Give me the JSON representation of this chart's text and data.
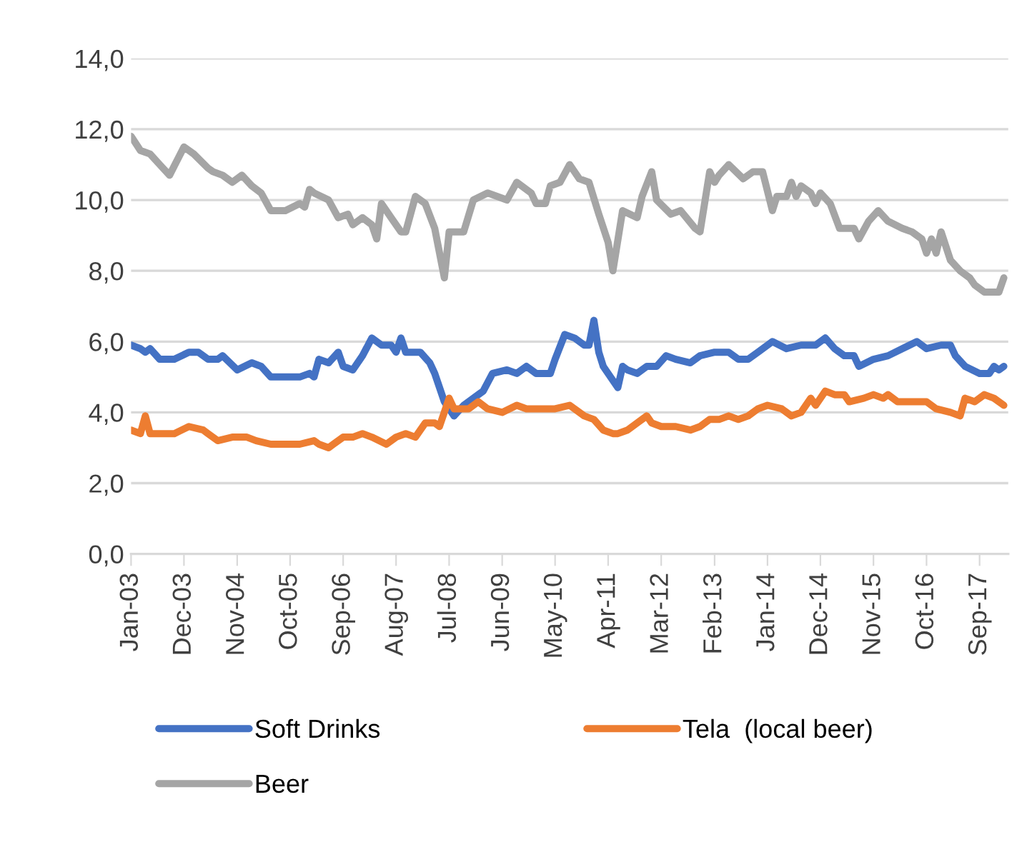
{
  "chart_data": {
    "type": "line",
    "legend": "bottom",
    "grid": "y",
    "marker": "none",
    "line_style": "solid",
    "ylim": [
      0,
      14
    ],
    "yticks": [
      {
        "value": 0,
        "label": "0,0"
      },
      {
        "value": 2,
        "label": "2,0"
      },
      {
        "value": 4,
        "label": "4,0"
      },
      {
        "value": 6,
        "label": "6,0"
      },
      {
        "value": 8,
        "label": "8,0"
      },
      {
        "value": 10,
        "label": "10,0"
      },
      {
        "value": 12,
        "label": "12,0"
      },
      {
        "value": 14,
        "label": "14,0"
      }
    ],
    "xlim": [
      "2003-01",
      "2018-03"
    ],
    "xticks": [
      {
        "value": "2003-01",
        "label": "Jan-03"
      },
      {
        "value": "2003-12",
        "label": "Dec-03"
      },
      {
        "value": "2004-11",
        "label": "Nov-04"
      },
      {
        "value": "2005-10",
        "label": "Oct-05"
      },
      {
        "value": "2006-09",
        "label": "Sep-06"
      },
      {
        "value": "2007-08",
        "label": "Aug-07"
      },
      {
        "value": "2008-07",
        "label": "Jul-08"
      },
      {
        "value": "2009-06",
        "label": "Jun-09"
      },
      {
        "value": "2010-05",
        "label": "May-10"
      },
      {
        "value": "2011-04",
        "label": "Apr-11"
      },
      {
        "value": "2012-03",
        "label": "Mar-12"
      },
      {
        "value": "2013-02",
        "label": "Feb-13"
      },
      {
        "value": "2014-01",
        "label": "Jan-14"
      },
      {
        "value": "2014-12",
        "label": "Dec-14"
      },
      {
        "value": "2015-11",
        "label": "Nov-15"
      },
      {
        "value": "2016-10",
        "label": "Oct-16"
      },
      {
        "value": "2017-09",
        "label": "Sep-17"
      }
    ],
    "series": [
      {
        "name": "Soft Drinks",
        "color": "#4472c4",
        "x": [
          "2003-01",
          "2003-03",
          "2003-04",
          "2003-05",
          "2003-07",
          "2003-08",
          "2003-10",
          "2004-01",
          "2004-03",
          "2004-05",
          "2004-07",
          "2004-08",
          "2004-11",
          "2005-02",
          "2005-04",
          "2005-06",
          "2005-09",
          "2005-12",
          "2006-02",
          "2006-03",
          "2006-04",
          "2006-06",
          "2006-08",
          "2006-09",
          "2006-11",
          "2007-01",
          "2007-03",
          "2007-05",
          "2007-07",
          "2007-08",
          "2007-09",
          "2007-10",
          "2008-01",
          "2008-03",
          "2008-04",
          "2008-06",
          "2008-08",
          "2008-10",
          "2009-01",
          "2009-02",
          "2009-04",
          "2009-07",
          "2009-09",
          "2009-11",
          "2010-01",
          "2010-04",
          "2010-05",
          "2010-07",
          "2010-09",
          "2010-11",
          "2010-12",
          "2011-01",
          "2011-02",
          "2011-03",
          "2011-06",
          "2011-07",
          "2011-08",
          "2011-10",
          "2011-12",
          "2012-02",
          "2012-04",
          "2012-06",
          "2012-09",
          "2012-11",
          "2013-02",
          "2013-05",
          "2013-07",
          "2013-09",
          "2013-11",
          "2014-02",
          "2014-05",
          "2014-08",
          "2014-11",
          "2015-01",
          "2015-03",
          "2015-05",
          "2015-07",
          "2015-08",
          "2015-11",
          "2016-02",
          "2016-05",
          "2016-08",
          "2016-10",
          "2017-01",
          "2017-03",
          "2017-04",
          "2017-06",
          "2017-09",
          "2017-11",
          "2017-12",
          "2018-01",
          "2018-02"
        ],
        "values": [
          5.9,
          5.8,
          5.7,
          5.8,
          5.5,
          5.5,
          5.5,
          5.7,
          5.7,
          5.5,
          5.5,
          5.6,
          5.2,
          5.4,
          5.3,
          5.0,
          5.0,
          5.0,
          5.1,
          5.0,
          5.5,
          5.4,
          5.7,
          5.3,
          5.2,
          5.6,
          6.1,
          5.9,
          5.9,
          5.7,
          6.1,
          5.7,
          5.7,
          5.4,
          5.1,
          4.3,
          3.9,
          4.2,
          4.5,
          4.6,
          5.1,
          5.2,
          5.1,
          5.3,
          5.1,
          5.1,
          5.5,
          6.2,
          6.1,
          5.9,
          5.9,
          6.6,
          5.7,
          5.3,
          4.7,
          5.3,
          5.2,
          5.1,
          5.3,
          5.3,
          5.6,
          5.5,
          5.4,
          5.6,
          5.7,
          5.7,
          5.5,
          5.5,
          5.7,
          6.0,
          5.8,
          5.9,
          5.9,
          6.1,
          5.8,
          5.6,
          5.6,
          5.3,
          5.5,
          5.6,
          5.8,
          6.0,
          5.8,
          5.9,
          5.9,
          5.6,
          5.3,
          5.1,
          5.1,
          5.3,
          5.2,
          5.3
        ]
      },
      {
        "name": "Tela  (local beer)",
        "color": "#ed7d31",
        "x": [
          "2003-01",
          "2003-03",
          "2003-04",
          "2003-05",
          "2003-08",
          "2003-10",
          "2004-01",
          "2004-04",
          "2004-05",
          "2004-07",
          "2004-10",
          "2005-01",
          "2005-03",
          "2005-06",
          "2005-09",
          "2005-12",
          "2006-03",
          "2006-04",
          "2006-06",
          "2006-07",
          "2006-09",
          "2006-11",
          "2007-01",
          "2007-03",
          "2007-06",
          "2007-08",
          "2007-10",
          "2007-12",
          "2008-02",
          "2008-04",
          "2008-05",
          "2008-07",
          "2008-08",
          "2008-11",
          "2009-01",
          "2009-03",
          "2009-06",
          "2009-09",
          "2009-11",
          "2010-02",
          "2010-05",
          "2010-08",
          "2010-11",
          "2011-01",
          "2011-03",
          "2011-05",
          "2011-06",
          "2011-08",
          "2011-10",
          "2011-12",
          "2012-01",
          "2012-03",
          "2012-06",
          "2012-09",
          "2012-11",
          "2013-01",
          "2013-03",
          "2013-05",
          "2013-07",
          "2013-09",
          "2013-11",
          "2014-01",
          "2014-04",
          "2014-06",
          "2014-08",
          "2014-10",
          "2014-11",
          "2015-01",
          "2015-03",
          "2015-05",
          "2015-06",
          "2015-09",
          "2015-11",
          "2016-01",
          "2016-02",
          "2016-04",
          "2016-07",
          "2016-10",
          "2016-12",
          "2017-03",
          "2017-05",
          "2017-06",
          "2017-08",
          "2017-10",
          "2017-12",
          "2018-02"
        ],
        "values": [
          3.5,
          3.4,
          3.9,
          3.4,
          3.4,
          3.4,
          3.6,
          3.5,
          3.4,
          3.2,
          3.3,
          3.3,
          3.2,
          3.1,
          3.1,
          3.1,
          3.2,
          3.1,
          3.0,
          3.1,
          3.3,
          3.3,
          3.4,
          3.3,
          3.1,
          3.3,
          3.4,
          3.3,
          3.7,
          3.7,
          3.6,
          4.4,
          4.1,
          4.1,
          4.3,
          4.1,
          4.0,
          4.2,
          4.1,
          4.1,
          4.1,
          4.2,
          3.9,
          3.8,
          3.5,
          3.4,
          3.4,
          3.5,
          3.7,
          3.9,
          3.7,
          3.6,
          3.6,
          3.5,
          3.6,
          3.8,
          3.8,
          3.9,
          3.8,
          3.9,
          4.1,
          4.2,
          4.1,
          3.9,
          4.0,
          4.4,
          4.2,
          4.6,
          4.5,
          4.5,
          4.3,
          4.4,
          4.5,
          4.4,
          4.5,
          4.3,
          4.3,
          4.3,
          4.1,
          4.0,
          3.9,
          4.4,
          4.3,
          4.5,
          4.4,
          4.2
        ]
      },
      {
        "name": "Beer",
        "color": "#a5a5a5",
        "x": [
          "2003-01",
          "2003-03",
          "2003-05",
          "2003-07",
          "2003-09",
          "2003-12",
          "2004-02",
          "2004-05",
          "2004-06",
          "2004-08",
          "2004-10",
          "2004-12",
          "2005-02",
          "2005-04",
          "2005-06",
          "2005-09",
          "2005-12",
          "2006-01",
          "2006-02",
          "2006-03",
          "2006-06",
          "2006-08",
          "2006-10",
          "2006-11",
          "2007-01",
          "2007-03",
          "2007-04",
          "2007-05",
          "2007-07",
          "2007-09",
          "2007-10",
          "2007-12",
          "2008-02",
          "2008-04",
          "2008-06",
          "2008-07",
          "2008-10",
          "2008-12",
          "2009-03",
          "2009-07",
          "2009-09",
          "2009-12",
          "2010-01",
          "2010-03",
          "2010-04",
          "2010-06",
          "2010-08",
          "2010-10",
          "2010-12",
          "2011-02",
          "2011-04",
          "2011-05",
          "2011-07",
          "2011-10",
          "2011-11",
          "2012-01",
          "2012-02",
          "2012-05",
          "2012-07",
          "2012-10",
          "2012-11",
          "2013-01",
          "2013-02",
          "2013-03",
          "2013-05",
          "2013-08",
          "2013-10",
          "2013-12",
          "2014-02",
          "2014-03",
          "2014-05",
          "2014-06",
          "2014-07",
          "2014-08",
          "2014-10",
          "2014-11",
          "2014-12",
          "2015-02",
          "2015-04",
          "2015-07",
          "2015-08",
          "2015-10",
          "2015-12",
          "2016-02",
          "2016-05",
          "2016-07",
          "2016-09",
          "2016-10",
          "2016-11",
          "2016-12",
          "2017-01",
          "2017-03",
          "2017-05",
          "2017-07",
          "2017-08",
          "2017-10",
          "2018-01",
          "2018-02"
        ],
        "values": [
          11.8,
          11.4,
          11.3,
          11.0,
          10.7,
          11.5,
          11.3,
          10.9,
          10.8,
          10.7,
          10.5,
          10.7,
          10.4,
          10.2,
          9.7,
          9.7,
          9.9,
          9.8,
          10.3,
          10.2,
          10.0,
          9.5,
          9.6,
          9.3,
          9.5,
          9.3,
          8.9,
          9.9,
          9.5,
          9.1,
          9.1,
          10.1,
          9.9,
          9.2,
          7.8,
          9.1,
          9.1,
          10.0,
          10.2,
          10.0,
          10.5,
          10.2,
          9.9,
          9.9,
          10.4,
          10.5,
          11.0,
          10.6,
          10.5,
          9.6,
          8.8,
          8.0,
          9.7,
          9.5,
          10.1,
          10.8,
          10.0,
          9.6,
          9.7,
          9.2,
          9.1,
          10.8,
          10.5,
          10.7,
          11.0,
          10.6,
          10.8,
          10.8,
          9.7,
          10.1,
          10.1,
          10.5,
          10.1,
          10.4,
          10.2,
          9.9,
          10.2,
          9.9,
          9.2,
          9.2,
          8.9,
          9.4,
          9.7,
          9.4,
          9.2,
          9.1,
          8.9,
          8.5,
          8.9,
          8.5,
          9.1,
          8.3,
          8.0,
          7.8,
          7.6,
          7.4,
          7.4,
          7.8
        ]
      }
    ]
  }
}
